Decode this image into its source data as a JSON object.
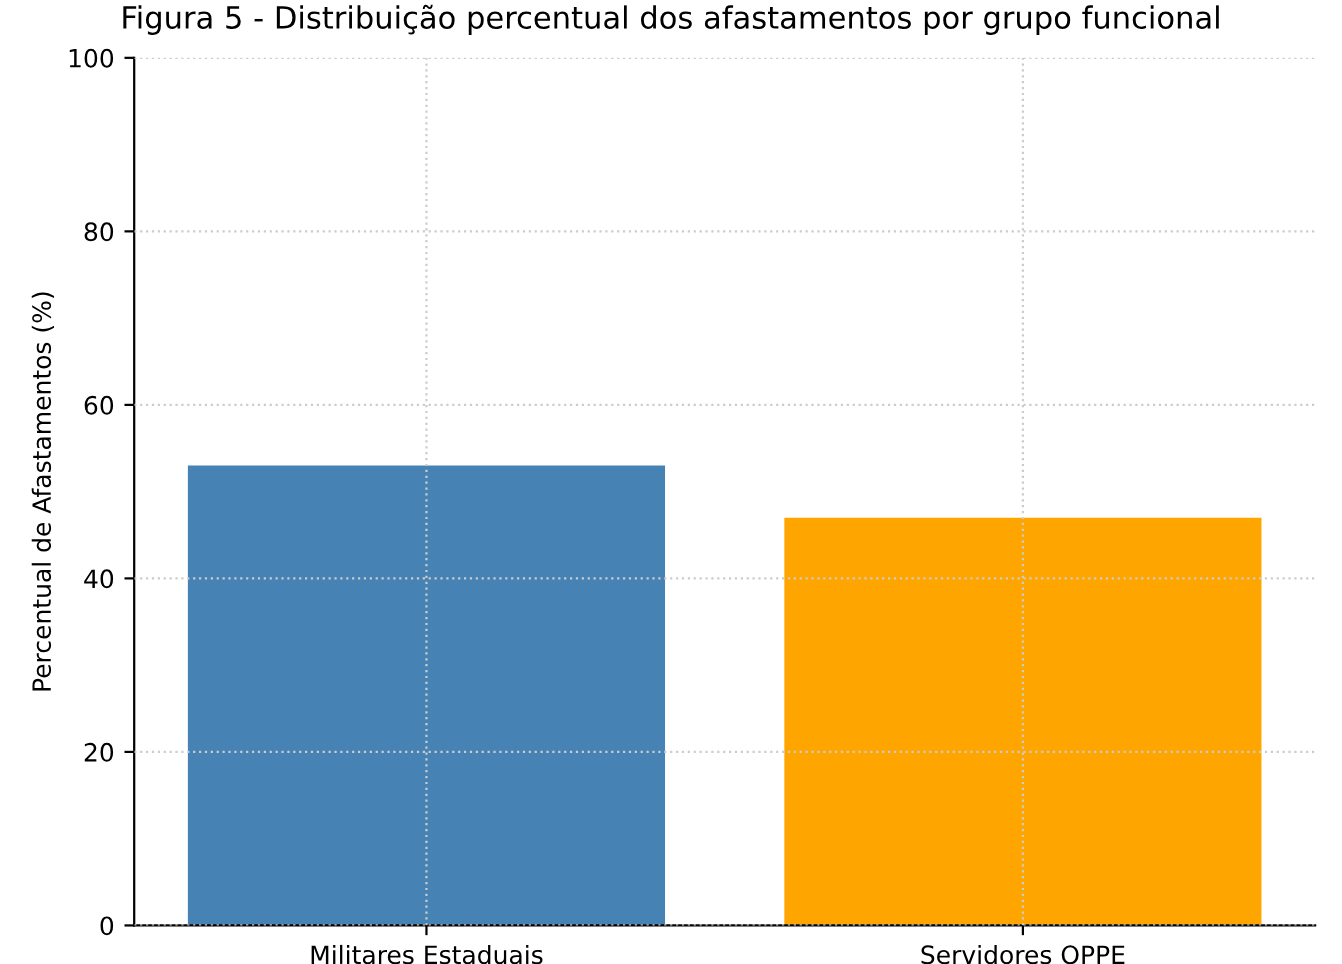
{
  "chart_data": {
    "type": "bar",
    "title": "Figura 5 - Distribuição percentual dos afastamentos por grupo funcional",
    "ylabel": "Percentual de Afastamentos (%)",
    "categories": [
      "Militares Estaduais",
      "Servidores OPPE"
    ],
    "values": [
      53,
      47
    ],
    "colors": [
      "#4682b4",
      "#ffa500"
    ],
    "ylim": [
      0,
      100
    ],
    "yticks": [
      0,
      20,
      40,
      60,
      80,
      100
    ],
    "grid": true
  }
}
